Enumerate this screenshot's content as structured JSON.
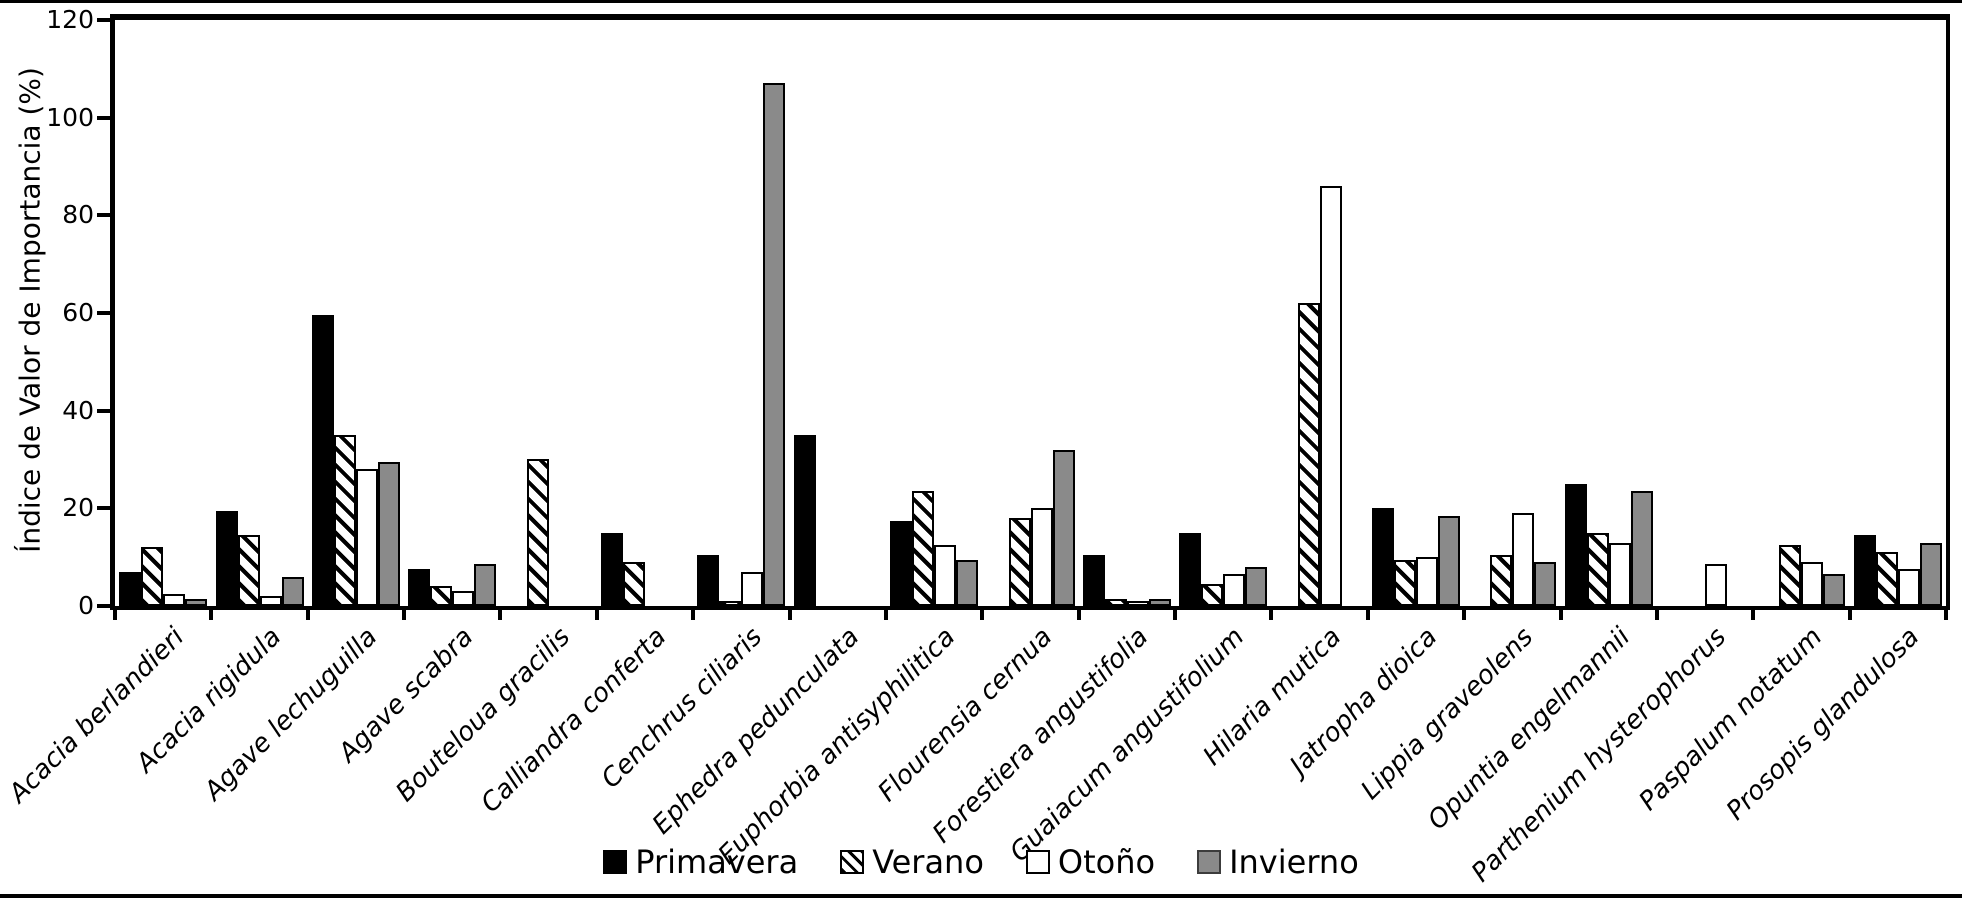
{
  "chart_data": {
    "type": "bar",
    "title": "",
    "xlabel": "",
    "ylabel": "Índice de Valor de Importancia (%)",
    "ylim": [
      0,
      120
    ],
    "yticks": [
      0,
      20,
      40,
      60,
      80,
      100,
      120
    ],
    "grid": false,
    "legend_position": "bottom-center",
    "bar_outline_color": "#000000",
    "categories": [
      "Acacia berlandieri",
      "Acacia rigidula",
      "Agave lechuguilla",
      "Agave scabra",
      "Bouteloua gracilis",
      "Calliandra conferta",
      "Cenchrus ciliaris",
      "Ephedra pedunculata",
      "Euphorbia antisyphilitica",
      "Flourensia cernua",
      "Forestiera angustifolia",
      "Guaiacum angustifolium",
      "Hilaria mutica",
      "Jatropha dioica",
      "Lippia graveolens",
      "Opuntia engelmannii",
      "Parthenium hysterophorus",
      "Paspalum notatum",
      "Prosopis glandulosa"
    ],
    "series": [
      {
        "name": "Primavera",
        "style": "solid-black",
        "color": "#000000",
        "values": [
          7,
          19.5,
          59.5,
          7.5,
          0,
          15,
          10.5,
          35,
          17.5,
          0,
          10.5,
          15,
          0,
          20,
          0,
          25,
          0,
          0,
          14.5
        ]
      },
      {
        "name": "Verano",
        "style": "diagonal-hatch",
        "color": "#ffffff",
        "values": [
          12,
          14.5,
          35,
          4,
          30,
          9,
          1,
          0,
          23.5,
          18,
          1.5,
          4.5,
          62,
          9.5,
          10.5,
          15,
          0,
          12.5,
          11
        ]
      },
      {
        "name": "Otoño",
        "style": "solid-white",
        "color": "#ffffff",
        "values": [
          2.5,
          2,
          28,
          3,
          0,
          0,
          7,
          0,
          12.5,
          20,
          1,
          6.5,
          86,
          10,
          19,
          13,
          8.5,
          9,
          7.5
        ]
      },
      {
        "name": "Invierno",
        "style": "solid-gray",
        "color": "#8a8a8a",
        "values": [
          1.5,
          6,
          29.5,
          8.5,
          0,
          0,
          107,
          0,
          9.5,
          32,
          1.5,
          8,
          0,
          18.5,
          9,
          23.5,
          0,
          6.5,
          13
        ]
      }
    ]
  }
}
